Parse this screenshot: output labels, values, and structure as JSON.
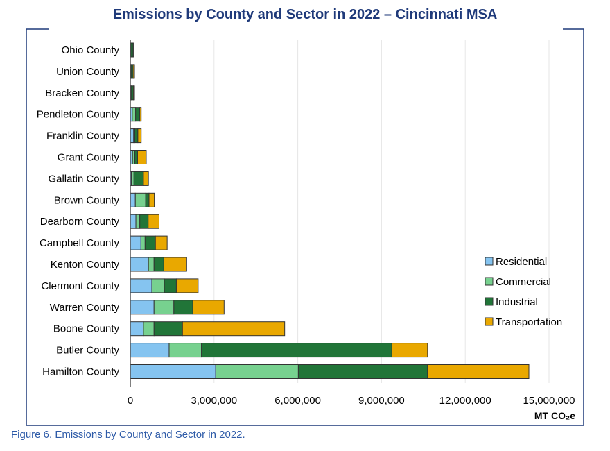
{
  "caption": "Figure 6. Emissions by County and Sector in 2022.",
  "chart_data": {
    "type": "bar",
    "orientation": "horizontal",
    "stacked": true,
    "title": "Emissions by County and Sector in 2022 – Cincinnati MSA",
    "xlabel": "MT CO₂e",
    "xlim": [
      0,
      15000000
    ],
    "xticks": [
      0,
      3000000,
      6000000,
      9000000,
      12000000,
      15000000
    ],
    "xtick_labels": [
      "0",
      "3,000,000",
      "6,000,000",
      "9,000,000",
      "12,000,000",
      "15,000,000"
    ],
    "grid": "vertical",
    "legend_position": "right",
    "categories": [
      "Ohio County",
      "Union County",
      "Bracken County",
      "Pendleton County",
      "Franklin County",
      "Grant County",
      "Gallatin County",
      "Brown County",
      "Dearborn County",
      "Campbell County",
      "Kenton County",
      "Clermont County",
      "Warren County",
      "Boone County",
      "Butler County",
      "Hamilton County"
    ],
    "series": [
      {
        "name": "Residential",
        "color": "#85C4F0",
        "values": [
          10000,
          20000,
          20000,
          70000,
          120000,
          80000,
          40000,
          180000,
          200000,
          380000,
          650000,
          770000,
          850000,
          470000,
          1390000,
          3060000
        ]
      },
      {
        "name": "Commercial",
        "color": "#77D18F",
        "values": [
          10000,
          10000,
          10000,
          120000,
          40000,
          80000,
          90000,
          370000,
          140000,
          150000,
          200000,
          450000,
          710000,
          380000,
          1160000,
          2960000
        ]
      },
      {
        "name": "Industrial",
        "color": "#217538",
        "values": [
          80000,
          70000,
          80000,
          150000,
          110000,
          100000,
          340000,
          120000,
          300000,
          370000,
          350000,
          430000,
          680000,
          1020000,
          6820000,
          4630000
        ]
      },
      {
        "name": "Transportation",
        "color": "#E9A800",
        "values": [
          10000,
          50000,
          40000,
          50000,
          120000,
          310000,
          180000,
          190000,
          390000,
          420000,
          820000,
          780000,
          1120000,
          3660000,
          1280000,
          3630000
        ]
      }
    ]
  }
}
